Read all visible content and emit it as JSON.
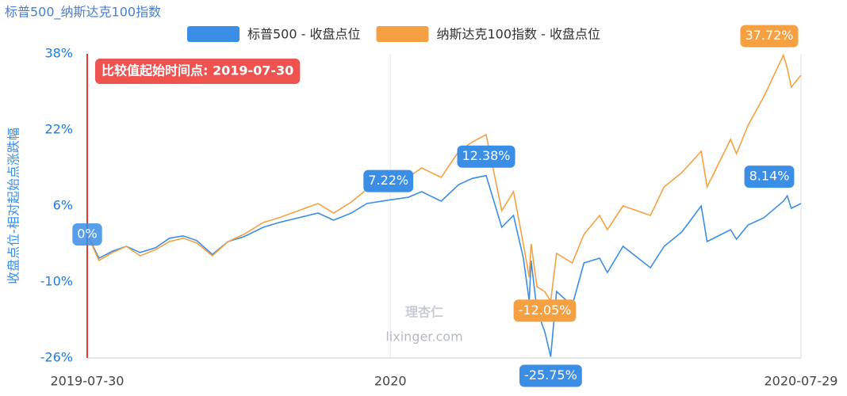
{
  "chart_data": {
    "type": "line",
    "title": "标普500_纳斯达克100指数",
    "y_label": "收盘点位-相对起始点涨跌幅",
    "annotation": "比较值起始时间点: 2019-07-30",
    "watermark": {
      "logo": "理杏仁",
      "site": "lixinger.com"
    },
    "x": [
      "2019-07-30",
      "2019-08-05",
      "2019-08-12",
      "2019-08-19",
      "2019-08-26",
      "2019-09-03",
      "2019-09-10",
      "2019-09-17",
      "2019-09-24",
      "2019-10-02",
      "2019-10-10",
      "2019-10-18",
      "2019-10-28",
      "2019-11-05",
      "2019-11-15",
      "2019-11-25",
      "2019-12-03",
      "2019-12-12",
      "2019-12-20",
      "2019-12-31",
      "2020-01-10",
      "2020-01-17",
      "2020-01-27",
      "2020-02-05",
      "2020-02-12",
      "2020-02-19",
      "2020-02-27",
      "2020-03-04",
      "2020-03-09",
      "2020-03-12",
      "2020-03-13",
      "2020-03-16",
      "2020-03-20",
      "2020-03-23",
      "2020-03-26",
      "2020-04-03",
      "2020-04-09",
      "2020-04-17",
      "2020-04-21",
      "2020-04-29",
      "2020-05-13",
      "2020-05-20",
      "2020-05-29",
      "2020-06-08",
      "2020-06-11",
      "2020-06-23",
      "2020-06-26",
      "2020-07-02",
      "2020-07-10",
      "2020-07-20",
      "2020-07-22",
      "2020-07-24",
      "2020-07-29"
    ],
    "series": [
      {
        "name": "标普500 - 收盘点位",
        "color": "#3a8ee6",
        "values": [
          0,
          -5,
          -3.5,
          -2.5,
          -3.8,
          -2.8,
          -0.8,
          -0.3,
          -1.3,
          -4.2,
          -1.5,
          -0.5,
          1.5,
          2.5,
          3.5,
          4.5,
          3,
          4.5,
          6.5,
          7.22,
          7.8,
          9,
          7,
          10.5,
          11.8,
          12.38,
          1.5,
          4,
          -5,
          -14,
          -5.5,
          -16,
          -20.5,
          -25.75,
          -12,
          -15,
          -6,
          -5,
          -8,
          -2.5,
          -7,
          -2.5,
          0.5,
          6,
          -1.5,
          1,
          -1,
          2,
          3.5,
          7,
          8.14,
          5.5,
          6.5
        ],
        "value_labels": [
          "0%",
          null,
          null,
          null,
          null,
          null,
          null,
          null,
          null,
          null,
          null,
          null,
          null,
          null,
          null,
          null,
          null,
          null,
          null,
          "7.22%",
          null,
          null,
          null,
          null,
          null,
          "12.38%",
          null,
          null,
          null,
          null,
          null,
          null,
          null,
          "-25.75%",
          null,
          null,
          null,
          null,
          null,
          null,
          null,
          null,
          null,
          null,
          null,
          null,
          null,
          null,
          null,
          null,
          "8.14%",
          null,
          null
        ]
      },
      {
        "name": "纳斯达克100指数 - 收盘点位",
        "color": "#f5a142",
        "values": [
          0,
          -5.5,
          -3.8,
          -2.5,
          -4.5,
          -3.2,
          -1.5,
          -0.8,
          -1.8,
          -4.5,
          -1.5,
          0,
          2.5,
          3.5,
          5,
          6.5,
          4.5,
          6.8,
          9.5,
          10.5,
          12,
          14,
          12,
          17.5,
          19.5,
          21,
          5,
          9,
          -2,
          -9,
          -2,
          -11,
          -12.05,
          -14,
          -4,
          -6,
          0,
          4,
          1,
          6,
          4,
          10,
          13,
          17.5,
          10,
          20,
          17,
          23,
          29,
          37.72,
          35,
          31,
          33.5
        ],
        "value_labels": [
          null,
          null,
          null,
          null,
          null,
          null,
          null,
          null,
          null,
          null,
          null,
          null,
          null,
          null,
          null,
          null,
          null,
          null,
          null,
          null,
          null,
          null,
          null,
          null,
          null,
          null,
          null,
          null,
          null,
          null,
          null,
          null,
          "-12.05%",
          null,
          null,
          null,
          null,
          null,
          null,
          null,
          null,
          null,
          null,
          null,
          null,
          null,
          null,
          null,
          null,
          "37.72%",
          null,
          null,
          null
        ]
      }
    ],
    "xlim": [
      "2019-07-30",
      "2020-07-29"
    ],
    "xticks": [
      "2019-07-30",
      {
        "value": "2020-01-01",
        "label": "2020"
      },
      "2020-07-29"
    ],
    "ylim": [
      -26,
      38
    ],
    "yticks": [
      {
        "value": -26,
        "label": "-26%"
      },
      {
        "value": -10,
        "label": "-10%"
      },
      {
        "value": 6,
        "label": "6%"
      },
      {
        "value": 22,
        "label": "22%"
      },
      {
        "value": 38,
        "label": "38%"
      }
    ],
    "grid": true
  }
}
